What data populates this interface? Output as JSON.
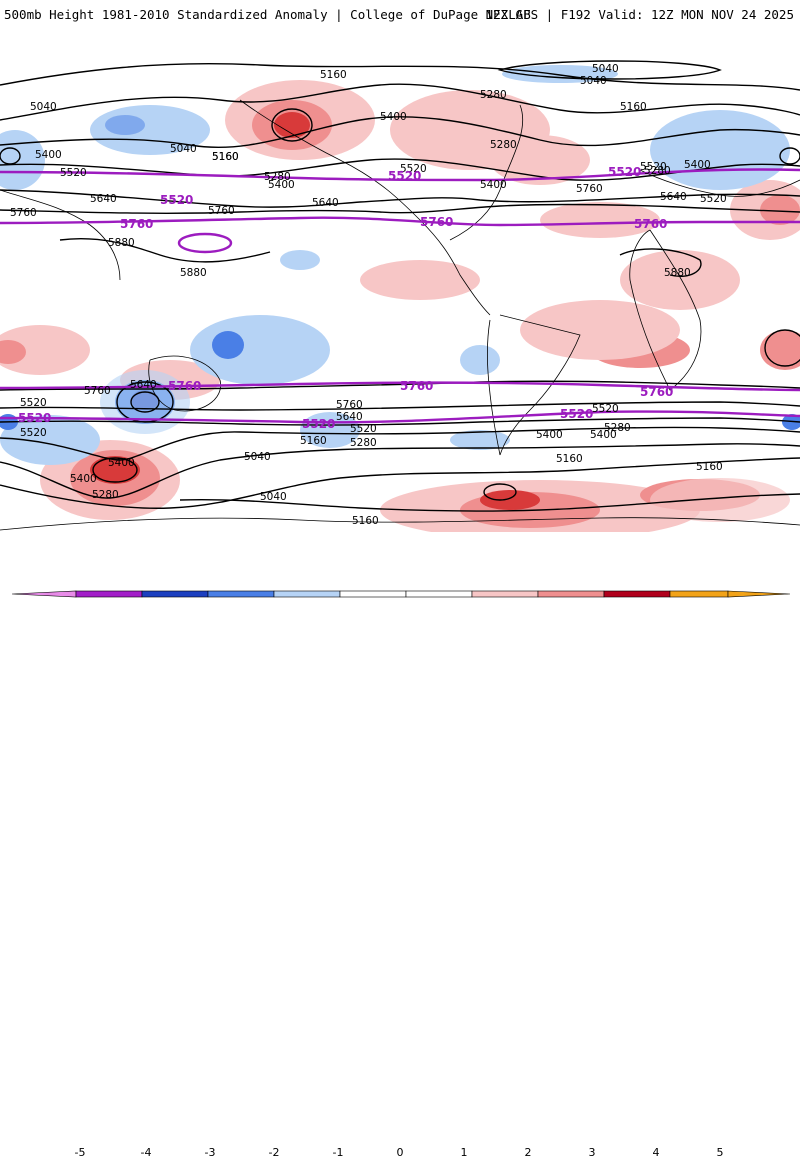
{
  "header": {
    "title": "500mb Height 1981-2010 Standardized Anomaly | College of DuPage NEXLAB",
    "run_info": "12Z GFS | F192 Valid: 12Z MON NOV 24 2025"
  },
  "colors": {
    "height_contour": "#000000",
    "highlight_contour": "#9c1cbf",
    "neg5": "#e88be8",
    "neg4": "#a21ec8",
    "neg3": "#1c3fbf",
    "neg2": "#4a7fe6",
    "neg1": "#b6d3f5",
    "neutral": "#ffffff",
    "pos1": "#f7c6c6",
    "pos2": "#ef8f8f",
    "pos3": "#d83a3a",
    "pos4": "#b0001c",
    "pos5": "#f2a319"
  },
  "map": {
    "contour_labels": [
      "5040",
      "5040",
      "5160",
      "5040",
      "5160",
      "5280",
      "5400",
      "5520",
      "5400",
      "5280",
      "5160",
      "5040",
      "5400",
      "5520",
      "5640",
      "5760",
      "5880",
      "5880",
      "5760",
      "5640",
      "5520",
      "5400",
      "5280",
      "5160",
      "5040",
      "5280",
      "5400",
      "5520",
      "5640",
      "5760",
      "5880",
      "5520",
      "5400",
      "5280",
      "5160",
      "5760",
      "5640",
      "5520",
      "5400",
      "5280",
      "5160",
      "5760",
      "5640",
      "5520",
      "5400",
      "5280",
      "5160",
      "5040",
      "5160",
      "5400",
      "5520"
    ],
    "highlight_labels": [
      "5520",
      "5520",
      "5520",
      "5760",
      "5760",
      "5760",
      "5760",
      "5760",
      "5760",
      "5520",
      "5520",
      "5520"
    ]
  },
  "colorbar": {
    "ticks": [
      "-5",
      "-4",
      "-3",
      "-2",
      "-1",
      "0",
      "1",
      "2",
      "3",
      "4",
      "5"
    ]
  }
}
